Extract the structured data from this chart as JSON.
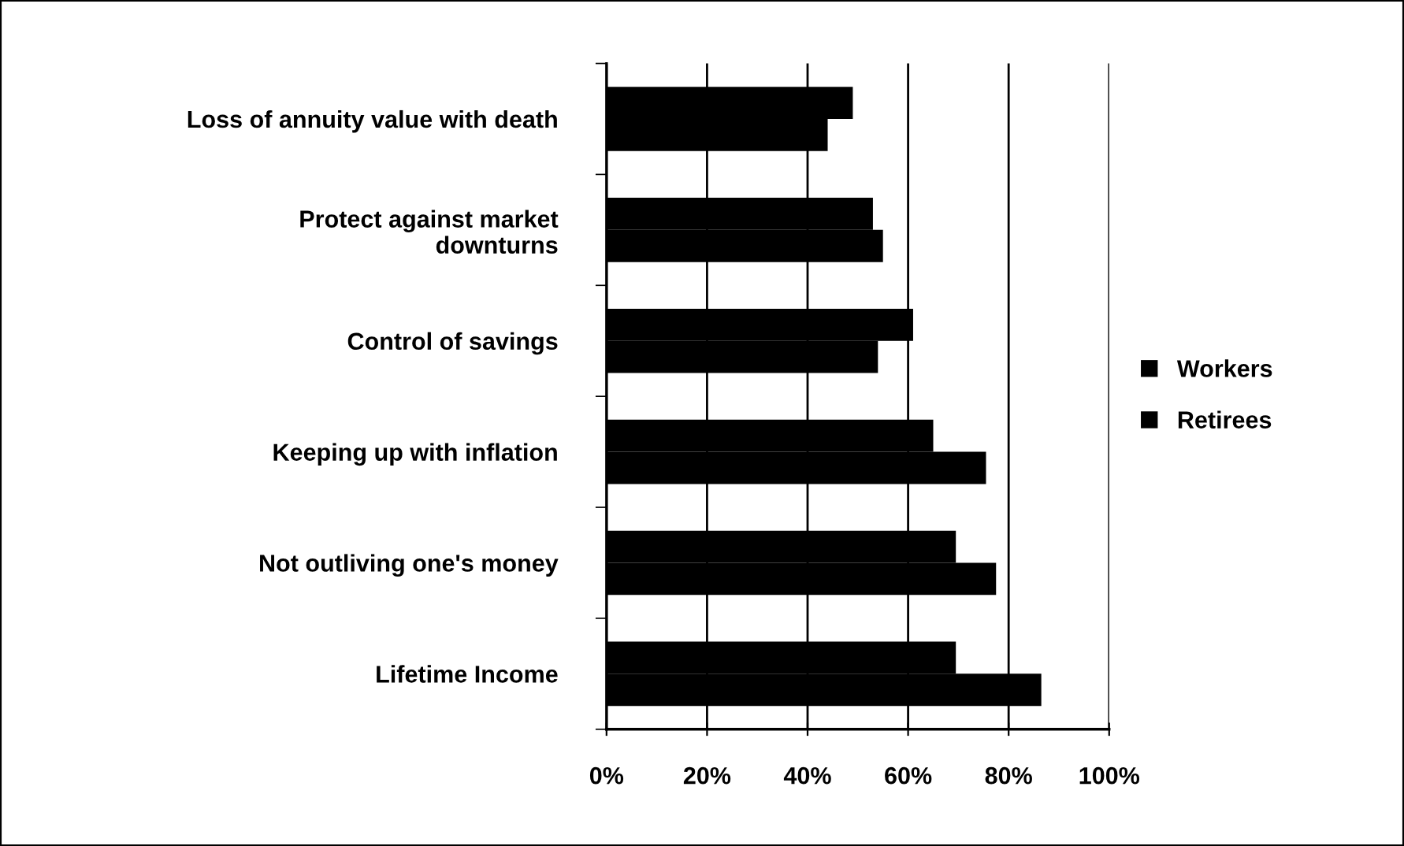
{
  "chart_data": {
    "type": "bar",
    "orientation": "horizontal",
    "categories": [
      "Loss of annuity value with death",
      "Protect against market\ndownturns",
      "Control of savings",
      "Keeping up with inflation",
      "Not outliving one's money",
      "Lifetime Income"
    ],
    "series": [
      {
        "name": "Workers",
        "color": "#000000",
        "values": [
          44,
          55,
          54,
          75.5,
          77.5,
          86.5
        ]
      },
      {
        "name": "Retirees",
        "color": "#000000",
        "values": [
          49,
          53,
          61,
          65,
          69.5,
          69.5
        ]
      }
    ],
    "xlim": [
      0,
      100
    ],
    "xticks": [
      {
        "value": 0,
        "label": "0%"
      },
      {
        "value": 20,
        "label": "20%"
      },
      {
        "value": 40,
        "label": "40%"
      },
      {
        "value": 60,
        "label": "60%"
      },
      {
        "value": 80,
        "label": "80%"
      },
      {
        "value": 100,
        "label": "100%"
      }
    ],
    "grid": "x",
    "legend": "right"
  }
}
